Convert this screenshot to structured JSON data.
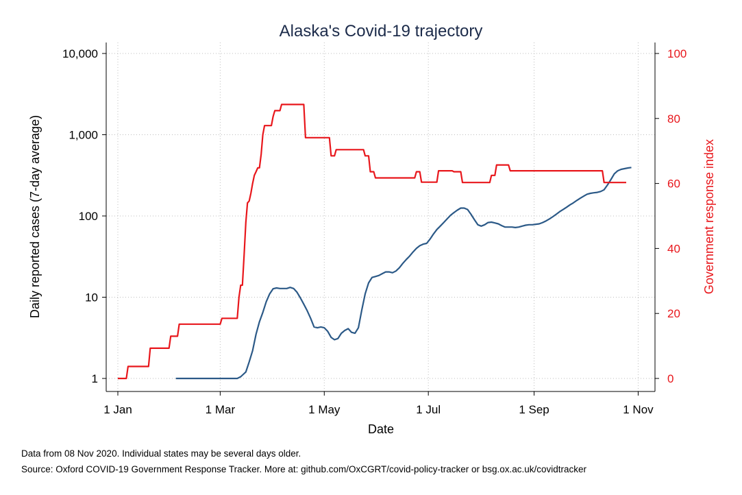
{
  "chart_data": {
    "type": "line",
    "title": "Alaska's Covid-19 trajectory",
    "xlabel": "Date",
    "ylabel_left": "Daily reported cases (7-day average)",
    "ylabel_right": "Government response index",
    "x_ticks": [
      {
        "label": "1 Jan",
        "day": 0
      },
      {
        "label": "1 Mar",
        "day": 60
      },
      {
        "label": "1 May",
        "day": 121
      },
      {
        "label": "1 Jul",
        "day": 182
      },
      {
        "label": "1 Sep",
        "day": 244
      },
      {
        "label": "1 Nov",
        "day": 305
      }
    ],
    "x_range_days": [
      0,
      313
    ],
    "left_axis": {
      "scale": "log",
      "range": [
        1,
        10000
      ],
      "ticks": [
        {
          "label": "1",
          "value": 1
        },
        {
          "label": "10",
          "value": 10
        },
        {
          "label": "100",
          "value": 100
        },
        {
          "label": "1,000",
          "value": 1000
        },
        {
          "label": "10,000",
          "value": 10000
        }
      ]
    },
    "right_axis": {
      "scale": "linear",
      "range": [
        0,
        100
      ],
      "ticks": [
        {
          "label": "0",
          "value": 0
        },
        {
          "label": "20",
          "value": 20
        },
        {
          "label": "40",
          "value": 40
        },
        {
          "label": "60",
          "value": 60
        },
        {
          "label": "80",
          "value": 80
        },
        {
          "label": "100",
          "value": 100
        }
      ]
    },
    "grid": true,
    "series": [
      {
        "axis": "left",
        "color": "#2b5987",
        "points": [
          [
            34,
            1
          ],
          [
            70,
            1
          ],
          [
            72,
            1.05
          ],
          [
            75,
            1.2
          ],
          [
            77,
            1.6
          ],
          [
            79,
            2.2
          ],
          [
            81,
            3.5
          ],
          [
            83,
            5
          ],
          [
            85,
            6.5
          ],
          [
            87,
            8.8
          ],
          [
            89,
            11
          ],
          [
            91,
            12.7
          ],
          [
            93,
            13
          ],
          [
            95,
            12.8
          ],
          [
            99,
            12.8
          ],
          [
            101,
            13.2
          ],
          [
            103,
            12.8
          ],
          [
            105,
            11.5
          ],
          [
            107,
            9.8
          ],
          [
            109,
            8.2
          ],
          [
            111,
            6.8
          ],
          [
            113,
            5.5
          ],
          [
            115,
            4.3
          ],
          [
            117,
            4.2
          ],
          [
            119,
            4.3
          ],
          [
            121,
            4.2
          ],
          [
            123,
            3.8
          ],
          [
            125,
            3.2
          ],
          [
            127,
            3
          ],
          [
            129,
            3.1
          ],
          [
            131,
            3.6
          ],
          [
            133,
            3.9
          ],
          [
            135,
            4.1
          ],
          [
            137,
            3.7
          ],
          [
            139,
            3.6
          ],
          [
            141,
            4.2
          ],
          [
            143,
            7
          ],
          [
            145,
            11
          ],
          [
            147,
            15
          ],
          [
            149,
            17.5
          ],
          [
            151,
            18
          ],
          [
            153,
            18.5
          ],
          [
            155,
            19.5
          ],
          [
            157,
            20.5
          ],
          [
            159,
            20.5
          ],
          [
            161,
            20
          ],
          [
            163,
            21
          ],
          [
            165,
            23
          ],
          [
            167,
            26
          ],
          [
            169,
            29
          ],
          [
            171,
            32
          ],
          [
            173,
            36
          ],
          [
            175,
            40
          ],
          [
            177,
            43
          ],
          [
            179,
            45
          ],
          [
            181,
            46
          ],
          [
            183,
            52
          ],
          [
            185,
            60
          ],
          [
            187,
            68
          ],
          [
            189,
            75
          ],
          [
            191,
            83
          ],
          [
            193,
            92
          ],
          [
            195,
            102
          ],
          [
            197,
            110
          ],
          [
            199,
            118
          ],
          [
            201,
            125
          ],
          [
            203,
            125
          ],
          [
            205,
            120
          ],
          [
            207,
            105
          ],
          [
            209,
            90
          ],
          [
            211,
            78
          ],
          [
            213,
            75
          ],
          [
            215,
            78
          ],
          [
            217,
            83
          ],
          [
            219,
            84
          ],
          [
            221,
            82
          ],
          [
            223,
            80
          ],
          [
            225,
            76
          ],
          [
            227,
            73
          ],
          [
            229,
            73
          ],
          [
            231,
            73
          ],
          [
            233,
            72
          ],
          [
            235,
            73
          ],
          [
            237,
            75
          ],
          [
            239,
            77
          ],
          [
            241,
            78
          ],
          [
            243,
            78
          ],
          [
            245,
            79
          ],
          [
            247,
            80
          ],
          [
            249,
            83
          ],
          [
            251,
            87
          ],
          [
            253,
            92
          ],
          [
            255,
            98
          ],
          [
            257,
            105
          ],
          [
            259,
            113
          ],
          [
            261,
            120
          ],
          [
            263,
            128
          ],
          [
            265,
            137
          ],
          [
            267,
            145
          ],
          [
            269,
            155
          ],
          [
            271,
            165
          ],
          [
            273,
            175
          ],
          [
            275,
            185
          ],
          [
            277,
            190
          ],
          [
            279,
            193
          ],
          [
            281,
            195
          ],
          [
            283,
            200
          ],
          [
            285,
            210
          ],
          [
            287,
            240
          ],
          [
            289,
            280
          ],
          [
            291,
            330
          ],
          [
            293,
            360
          ],
          [
            295,
            375
          ],
          [
            297,
            382
          ],
          [
            299,
            390
          ],
          [
            301,
            395
          ]
        ]
      },
      {
        "axis": "right",
        "color": "#e8161b",
        "points": [
          [
            0,
            0
          ],
          [
            5,
            0
          ],
          [
            6,
            3.7
          ],
          [
            18,
            3.7
          ],
          [
            19,
            9.3
          ],
          [
            30,
            9.3
          ],
          [
            31,
            13
          ],
          [
            35,
            13
          ],
          [
            36,
            16.7
          ],
          [
            60,
            16.7
          ],
          [
            61,
            18.5
          ],
          [
            70,
            18.5
          ],
          [
            71,
            25
          ],
          [
            72,
            28.7
          ],
          [
            73,
            28.7
          ],
          [
            74,
            38
          ],
          [
            75,
            48
          ],
          [
            76,
            54
          ],
          [
            77,
            54.6
          ],
          [
            78,
            57
          ],
          [
            79,
            60
          ],
          [
            80,
            62.5
          ],
          [
            81,
            63.6
          ],
          [
            82,
            64.8
          ],
          [
            83,
            64.8
          ],
          [
            84,
            69
          ],
          [
            85,
            75
          ],
          [
            86,
            77.8
          ],
          [
            90,
            77.8
          ],
          [
            91,
            80.6
          ],
          [
            92,
            82.4
          ],
          [
            95,
            82.4
          ],
          [
            96,
            84.3
          ],
          [
            109,
            84.3
          ],
          [
            110,
            74.1
          ],
          [
            124,
            74.1
          ],
          [
            125,
            68.5
          ],
          [
            127,
            68.5
          ],
          [
            128,
            70.4
          ],
          [
            144,
            70.4
          ],
          [
            145,
            68.5
          ],
          [
            147,
            68.5
          ],
          [
            148,
            63.6
          ],
          [
            150,
            63.6
          ],
          [
            151,
            61.7
          ],
          [
            174,
            61.7
          ],
          [
            175,
            63.6
          ],
          [
            177,
            63.6
          ],
          [
            178,
            60.4
          ],
          [
            187,
            60.4
          ],
          [
            188,
            63.9
          ],
          [
            196,
            63.9
          ],
          [
            197,
            63.6
          ],
          [
            201,
            63.6
          ],
          [
            202,
            60.3
          ],
          [
            218,
            60.3
          ],
          [
            219,
            62.5
          ],
          [
            221,
            62.5
          ],
          [
            222,
            65.7
          ],
          [
            229,
            65.7
          ],
          [
            230,
            63.9
          ],
          [
            284,
            63.9
          ],
          [
            285,
            60.3
          ],
          [
            298,
            60.3
          ]
        ]
      }
    ]
  },
  "notes": {
    "line1": "Data from 08 Nov 2020. Individual states may be several days older.",
    "line2": "Source: Oxford COVID-19 Government Response Tracker. More at: github.com/OxCGRT/covid-policy-tracker or bsg.ox.ac.uk/covidtracker"
  }
}
